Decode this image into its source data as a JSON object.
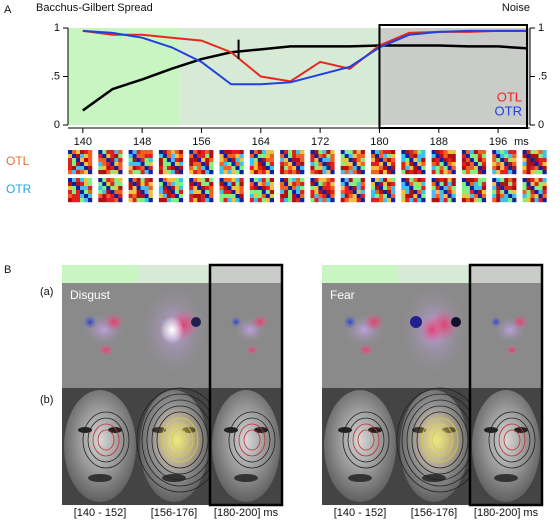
{
  "chart_data": {
    "type": "line",
    "panel_label": "A",
    "title_left": "Bacchus-Gilbert Spread",
    "title_right": "Noise",
    "x": [
      140,
      144,
      148,
      152,
      156,
      160,
      164,
      168,
      172,
      176,
      180,
      184,
      188,
      192,
      196,
      200
    ],
    "xlim": [
      138,
      200.3
    ],
    "xticks": [
      140,
      148,
      156,
      164,
      172,
      180,
      188,
      196
    ],
    "x_unit": "ms",
    "ylim": [
      0,
      1
    ],
    "yticks": [
      0,
      {
        "value": 0.5,
        "label": ".5"
      },
      1
    ],
    "y2lim": [
      0,
      1
    ],
    "y2ticks": [
      0,
      {
        "value": 0.5,
        "label": ".5"
      },
      1
    ],
    "regions": [
      {
        "from": 138,
        "to": 153,
        "color": "#c8f5c2"
      },
      {
        "from": 153,
        "to": 180,
        "color": "#d7ead6"
      },
      {
        "from": 180,
        "to": 200.3,
        "color": "#c9ccc9"
      }
    ],
    "series": [
      {
        "color": "#000000",
        "values": [
          0.15,
          0.37,
          0.47,
          0.58,
          0.68,
          0.75,
          0.78,
          0.81,
          0.81,
          0.81,
          0.82,
          0.82,
          0.82,
          0.81,
          0.81,
          0.79
        ]
      },
      {
        "name": "OTL",
        "color": "#e8281e",
        "values": [
          0.97,
          0.93,
          0.93,
          0.9,
          0.87,
          0.75,
          0.5,
          0.45,
          0.65,
          0.58,
          0.82,
          0.95,
          0.96,
          0.96,
          0.97,
          0.97
        ]
      },
      {
        "name": "OTR",
        "color": "#2040e0",
        "values": [
          0.97,
          0.95,
          0.9,
          0.8,
          0.65,
          0.42,
          0.42,
          0.44,
          0.52,
          0.6,
          0.8,
          0.93,
          0.96,
          0.97,
          0.97,
          0.97
        ]
      }
    ],
    "error_bar": {
      "x": 161,
      "y": 0.78,
      "error": 0.1
    }
  },
  "thumbnails": {
    "rows": [
      {
        "label": "OTL",
        "color": "#e87030"
      },
      {
        "label": "OTR",
        "color": "#20a8e0"
      }
    ]
  },
  "panel_b": {
    "label": "B",
    "row_labels": [
      "(a)",
      "(b)"
    ],
    "groups": [
      {
        "emotion": "Disgust"
      },
      {
        "emotion": "Fear"
      }
    ],
    "window_labels": [
      "[140 - 152]",
      "[156-176]",
      "[180-200] ms"
    ]
  }
}
